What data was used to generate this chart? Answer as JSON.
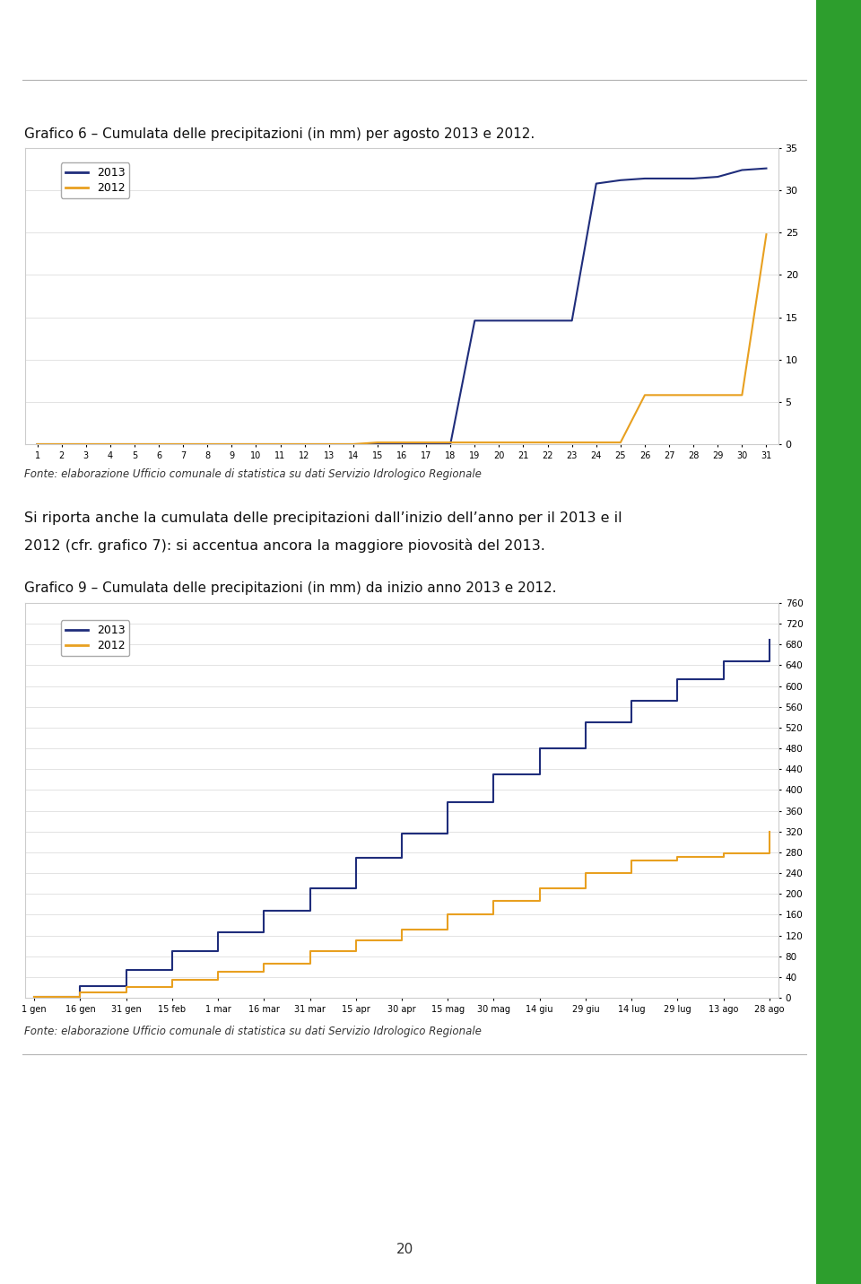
{
  "title1": "Grafico 6 – Cumulata delle precipitazioni (in mm) per agosto 2013 e 2012.",
  "title2": "Grafico 9 – Cumulata delle precipitazioni (in mm) da inizio anno 2013 e 2012.",
  "source_text": "Fonte: elaborazione Ufficio comunale di statistica su dati Servizio Idrologico Regionale",
  "middle_text1": "Si riporta anche la cumulata delle precipitazioni dall’inizio dell’anno per il 2013 e il",
  "middle_text2": "2012 (cfr. grafico 7): si accentua ancora la maggiore piovosità del 2013.",
  "color_2013": "#1f2d7b",
  "color_2012": "#e8a020",
  "bg_color": "#ffffff",
  "green_bar_color": "#2d9e2d",
  "chart1": {
    "x": [
      1,
      2,
      3,
      4,
      5,
      6,
      7,
      8,
      9,
      10,
      11,
      12,
      13,
      14,
      15,
      16,
      17,
      18,
      19,
      20,
      21,
      22,
      23,
      24,
      25,
      26,
      27,
      28,
      29,
      30,
      31
    ],
    "y2013": [
      0,
      0,
      0,
      0,
      0,
      0,
      0,
      0,
      0,
      0,
      0,
      0,
      0,
      0,
      0,
      0,
      0,
      0,
      14.6,
      14.6,
      14.6,
      14.6,
      14.6,
      30.8,
      31.2,
      31.4,
      31.4,
      31.4,
      31.6,
      32.4,
      32.6
    ],
    "y2012": [
      0,
      0,
      0,
      0,
      0,
      0,
      0,
      0,
      0,
      0,
      0,
      0,
      0,
      0,
      0.2,
      0.2,
      0.2,
      0.2,
      0.2,
      0.2,
      0.2,
      0.2,
      0.2,
      0.2,
      0.2,
      5.8,
      5.8,
      5.8,
      5.8,
      5.8,
      24.8
    ],
    "ylim": [
      0,
      35
    ],
    "yticks": [
      0,
      5,
      10,
      15,
      20,
      25,
      30,
      35
    ],
    "xlabel_ticks": [
      1,
      2,
      3,
      4,
      5,
      6,
      7,
      8,
      9,
      10,
      11,
      12,
      13,
      14,
      15,
      16,
      17,
      18,
      19,
      20,
      21,
      22,
      23,
      24,
      25,
      26,
      27,
      28,
      29,
      30,
      31
    ]
  },
  "chart2": {
    "x_labels": [
      "1 gen",
      "16 gen",
      "31 gen",
      "15 feb",
      "1 mar",
      "16 mar",
      "31 mar",
      "15 apr",
      "30 apr",
      "15 mag",
      "30 mag",
      "14 giu",
      "29 giu",
      "14 lug",
      "29 lug",
      "13 ago",
      "28 ago"
    ],
    "x_vals": [
      0,
      1,
      2,
      3,
      4,
      5,
      6,
      7,
      8,
      9,
      10,
      11,
      12,
      13,
      14,
      15,
      16
    ],
    "y2013": [
      2,
      22,
      54,
      90,
      126,
      168,
      210,
      270,
      316,
      376,
      430,
      480,
      530,
      572,
      614,
      648,
      690
    ],
    "y2012": [
      2,
      10,
      20,
      34,
      50,
      66,
      90,
      110,
      132,
      160,
      186,
      210,
      240,
      264,
      272,
      278,
      320
    ],
    "ylim": [
      0,
      760
    ],
    "yticks": [
      0,
      40,
      80,
      120,
      160,
      200,
      240,
      280,
      320,
      360,
      400,
      440,
      480,
      520,
      560,
      600,
      640,
      680,
      720,
      760
    ]
  }
}
